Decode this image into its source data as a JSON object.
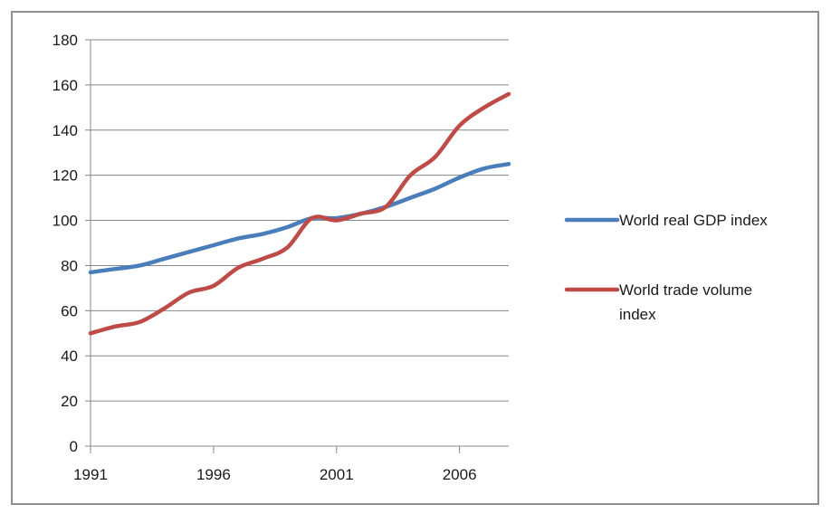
{
  "chart_data": {
    "type": "line",
    "title": "",
    "xlabel": "",
    "ylabel": "",
    "xlim": [
      1991,
      2008
    ],
    "ylim": [
      0,
      180
    ],
    "y_ticks": [
      0,
      20,
      40,
      60,
      80,
      100,
      120,
      140,
      160,
      180
    ],
    "x_ticks": [
      1991,
      1996,
      2001,
      2006
    ],
    "grid": "horizontal",
    "legend_position": "right",
    "x": [
      1991,
      1992,
      1993,
      1994,
      1995,
      1996,
      1997,
      1998,
      1999,
      2000,
      2001,
      2002,
      2003,
      2004,
      2005,
      2006,
      2007,
      2008
    ],
    "series": [
      {
        "name": "World real GDP index",
        "color": "#4a7ebb",
        "values": [
          77,
          78.5,
          80,
          83,
          86,
          89,
          92,
          94,
          97,
          101,
          101,
          103,
          106,
          110,
          114,
          119,
          123,
          125
        ]
      },
      {
        "name": "World trade volume index",
        "name_lines": [
          "World trade volume",
          "index"
        ],
        "color": "#be4b48",
        "values": [
          50,
          53,
          55,
          61,
          68,
          71,
          79,
          83,
          88,
          101,
          100,
          103,
          106,
          120,
          128,
          142,
          150,
          156
        ]
      }
    ]
  }
}
